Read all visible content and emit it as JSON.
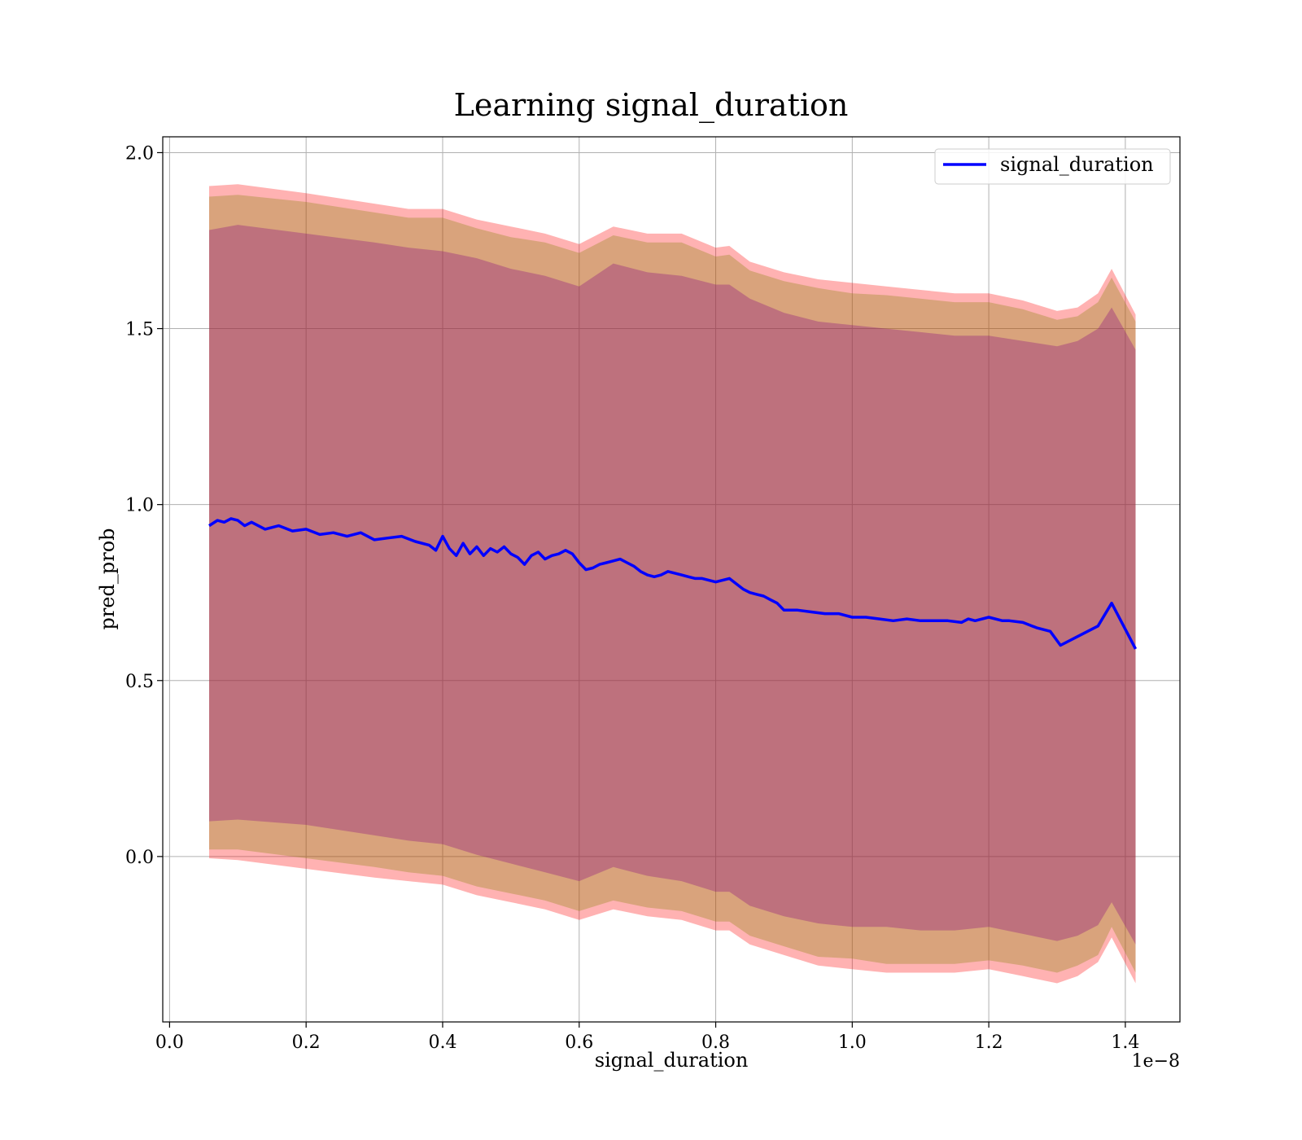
{
  "chart_data": {
    "type": "line",
    "title": "Learning signal_duration",
    "xlabel": "signal_duration",
    "ylabel": "pred_prob",
    "x_scale_label": "1e−8",
    "x_scale": 1e-08,
    "xlim": [
      -0.01,
      1.48
    ],
    "ylim": [
      -0.47,
      2.045
    ],
    "xticks": [
      0.0,
      0.2,
      0.4,
      0.6,
      0.8,
      1.0,
      1.2,
      1.4
    ],
    "xtick_labels": [
      "0.0",
      "0.2",
      "0.4",
      "0.6",
      "0.8",
      "1.0",
      "1.2",
      "1.4"
    ],
    "yticks": [
      0.0,
      0.5,
      1.0,
      1.5,
      2.0
    ],
    "ytick_labels": [
      "0.0",
      "0.5",
      "1.0",
      "1.5",
      "2.0"
    ],
    "grid": true,
    "legend_position": "top-right",
    "colors": {
      "line": "#0000ff",
      "band_outer": "#ff0000",
      "band_middle": "#808000",
      "band_inner": "#800080",
      "grid": "#b0b0b0"
    },
    "series": [
      {
        "name": "signal_duration",
        "x": [
          0.058,
          0.07,
          0.08,
          0.09,
          0.1,
          0.11,
          0.12,
          0.14,
          0.16,
          0.18,
          0.2,
          0.22,
          0.24,
          0.26,
          0.28,
          0.3,
          0.32,
          0.34,
          0.36,
          0.38,
          0.39,
          0.4,
          0.41,
          0.42,
          0.43,
          0.44,
          0.45,
          0.46,
          0.47,
          0.48,
          0.49,
          0.5,
          0.51,
          0.52,
          0.53,
          0.54,
          0.55,
          0.56,
          0.57,
          0.58,
          0.59,
          0.6,
          0.61,
          0.62,
          0.63,
          0.64,
          0.65,
          0.66,
          0.67,
          0.68,
          0.69,
          0.7,
          0.71,
          0.72,
          0.73,
          0.74,
          0.75,
          0.76,
          0.77,
          0.78,
          0.79,
          0.8,
          0.81,
          0.82,
          0.83,
          0.84,
          0.85,
          0.86,
          0.87,
          0.88,
          0.89,
          0.9,
          0.92,
          0.94,
          0.96,
          0.98,
          1.0,
          1.02,
          1.04,
          1.06,
          1.08,
          1.1,
          1.12,
          1.14,
          1.16,
          1.17,
          1.18,
          1.2,
          1.22,
          1.23,
          1.25,
          1.27,
          1.29,
          1.305,
          1.33,
          1.36,
          1.38,
          1.415
        ],
        "values": [
          0.94,
          0.955,
          0.95,
          0.96,
          0.955,
          0.94,
          0.95,
          0.93,
          0.94,
          0.925,
          0.93,
          0.915,
          0.92,
          0.91,
          0.92,
          0.9,
          0.905,
          0.91,
          0.895,
          0.885,
          0.87,
          0.91,
          0.875,
          0.855,
          0.89,
          0.86,
          0.88,
          0.855,
          0.875,
          0.865,
          0.88,
          0.86,
          0.85,
          0.83,
          0.855,
          0.865,
          0.845,
          0.855,
          0.86,
          0.87,
          0.86,
          0.835,
          0.815,
          0.82,
          0.83,
          0.835,
          0.84,
          0.845,
          0.835,
          0.825,
          0.81,
          0.8,
          0.795,
          0.8,
          0.81,
          0.805,
          0.8,
          0.795,
          0.79,
          0.79,
          0.785,
          0.78,
          0.785,
          0.79,
          0.775,
          0.76,
          0.75,
          0.745,
          0.74,
          0.73,
          0.72,
          0.7,
          0.7,
          0.695,
          0.69,
          0.69,
          0.68,
          0.68,
          0.675,
          0.67,
          0.675,
          0.67,
          0.67,
          0.67,
          0.665,
          0.675,
          0.67,
          0.68,
          0.67,
          0.67,
          0.665,
          0.65,
          0.64,
          0.6,
          0.625,
          0.655,
          0.72,
          0.59
        ]
      }
    ],
    "bands": {
      "x": [
        0.058,
        0.1,
        0.2,
        0.3,
        0.35,
        0.4,
        0.45,
        0.5,
        0.55,
        0.6,
        0.65,
        0.7,
        0.75,
        0.8,
        0.82,
        0.85,
        0.9,
        0.95,
        1.0,
        1.05,
        1.1,
        1.15,
        1.2,
        1.25,
        1.3,
        1.33,
        1.36,
        1.38,
        1.415
      ],
      "outer_upper": [
        1.905,
        1.91,
        1.885,
        1.855,
        1.84,
        1.84,
        1.81,
        1.79,
        1.77,
        1.74,
        1.79,
        1.77,
        1.77,
        1.73,
        1.735,
        1.69,
        1.66,
        1.64,
        1.63,
        1.62,
        1.61,
        1.6,
        1.6,
        1.58,
        1.55,
        1.56,
        1.6,
        1.67,
        1.54
      ],
      "outer_lower": [
        -0.005,
        -0.01,
        -0.035,
        -0.06,
        -0.07,
        -0.08,
        -0.11,
        -0.13,
        -0.15,
        -0.18,
        -0.15,
        -0.17,
        -0.18,
        -0.21,
        -0.21,
        -0.25,
        -0.28,
        -0.31,
        -0.32,
        -0.33,
        -0.33,
        -0.33,
        -0.32,
        -0.34,
        -0.36,
        -0.34,
        -0.3,
        -0.23,
        -0.36
      ],
      "middle_upper": [
        1.875,
        1.88,
        1.86,
        1.83,
        1.815,
        1.815,
        1.785,
        1.76,
        1.745,
        1.715,
        1.765,
        1.745,
        1.745,
        1.705,
        1.71,
        1.665,
        1.635,
        1.615,
        1.6,
        1.595,
        1.585,
        1.575,
        1.575,
        1.555,
        1.525,
        1.535,
        1.575,
        1.645,
        1.52
      ],
      "middle_lower": [
        0.02,
        0.02,
        -0.005,
        -0.03,
        -0.045,
        -0.055,
        -0.085,
        -0.105,
        -0.125,
        -0.155,
        -0.125,
        -0.145,
        -0.155,
        -0.185,
        -0.185,
        -0.225,
        -0.255,
        -0.285,
        -0.29,
        -0.305,
        -0.305,
        -0.305,
        -0.295,
        -0.31,
        -0.33,
        -0.31,
        -0.28,
        -0.2,
        -0.33
      ],
      "inner_upper": [
        1.78,
        1.795,
        1.77,
        1.745,
        1.73,
        1.72,
        1.7,
        1.67,
        1.65,
        1.62,
        1.685,
        1.66,
        1.65,
        1.625,
        1.625,
        1.585,
        1.545,
        1.52,
        1.51,
        1.5,
        1.49,
        1.48,
        1.48,
        1.465,
        1.45,
        1.465,
        1.5,
        1.56,
        1.44
      ],
      "inner_lower": [
        0.1,
        0.105,
        0.09,
        0.06,
        0.045,
        0.035,
        0.005,
        -0.02,
        -0.045,
        -0.07,
        -0.03,
        -0.055,
        -0.07,
        -0.1,
        -0.1,
        -0.14,
        -0.17,
        -0.19,
        -0.2,
        -0.2,
        -0.21,
        -0.21,
        -0.2,
        -0.22,
        -0.24,
        -0.225,
        -0.195,
        -0.13,
        -0.25
      ]
    }
  }
}
